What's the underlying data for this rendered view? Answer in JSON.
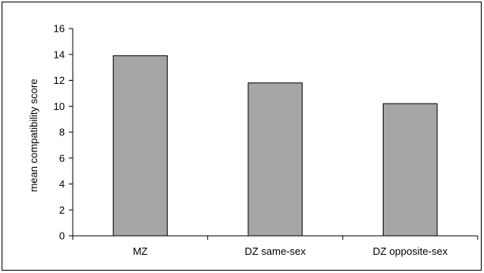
{
  "chart_data": {
    "type": "bar",
    "title": "",
    "xlabel": "",
    "ylabel": "mean compatibility score",
    "categories": [
      "MZ",
      "DZ same-sex",
      "DZ opposite-sex"
    ],
    "values": [
      13.9,
      11.8,
      10.2
    ],
    "ylim": [
      0,
      16
    ],
    "yticks": [
      0,
      2,
      4,
      6,
      8,
      10,
      12,
      14,
      16
    ],
    "grid": false,
    "legend": "none",
    "bar_color": "#a6a6a6",
    "bar_edge_color": "#000000"
  }
}
